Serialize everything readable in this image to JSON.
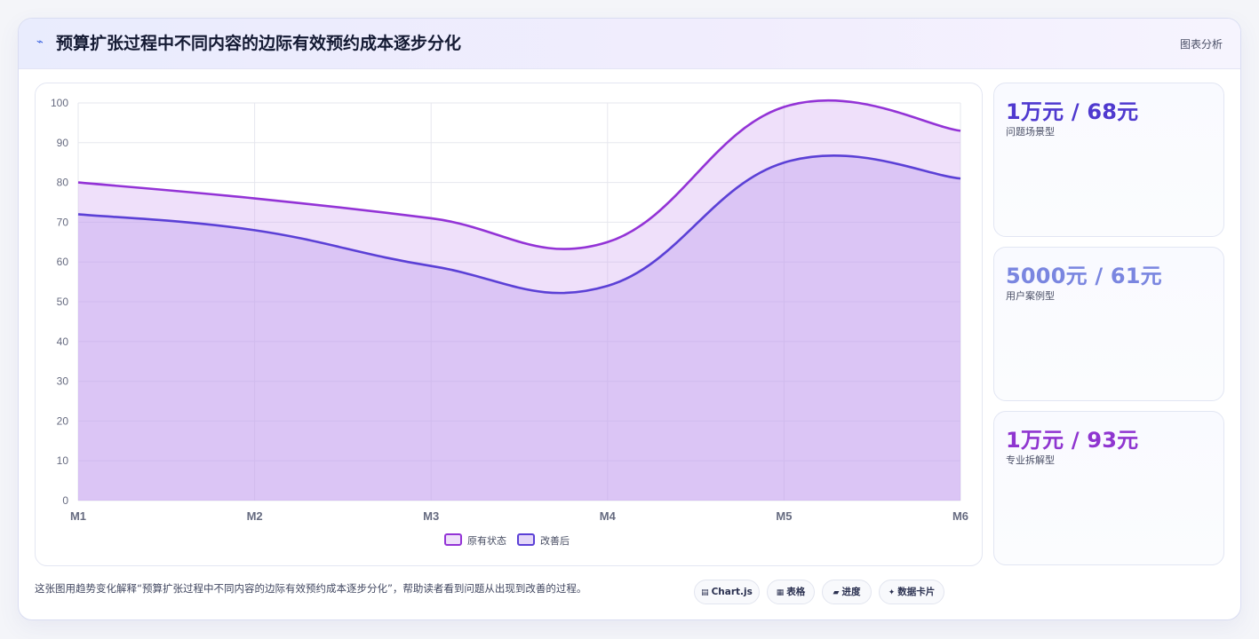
{
  "header": {
    "icon": "trend-line-icon",
    "title": "预算扩张过程中不同内容的边际有效预约成本逐步分化",
    "link": "图表分析"
  },
  "colors": {
    "series_original": "#9333d6",
    "series_improved": "#5b40d6",
    "stat1": "#4f39cf",
    "stat2": "#7a86e0",
    "stat3": "#8f35d0"
  },
  "chart_data": {
    "type": "area",
    "categories": [
      "M1",
      "M2",
      "M3",
      "M4",
      "M5",
      "M6"
    ],
    "ylim": [
      0,
      100
    ],
    "yticks": [
      "0",
      "10",
      "20",
      "30",
      "40",
      "50",
      "60",
      "70",
      "80",
      "90",
      "100"
    ],
    "grid": true,
    "legend_position": "bottom",
    "series": [
      {
        "name": "原有状态",
        "values": [
          80,
          76,
          71,
          65,
          99,
          93
        ],
        "color": "#9333d6",
        "fill": "rgba(205,160,240,0.32)"
      },
      {
        "name": "改善后",
        "values": [
          72,
          68,
          59,
          54,
          85,
          81
        ],
        "color": "#5b40d6",
        "fill": "rgba(190,160,238,0.42)"
      }
    ]
  },
  "stats": [
    {
      "value": "1万元 / 68元",
      "label": "问题场景型"
    },
    {
      "value": "5000元 / 61元",
      "label": "用户案例型"
    },
    {
      "value": "1万元 / 93元",
      "label": "专业拆解型"
    }
  ],
  "footer": {
    "description": "这张图用趋势变化解释“预算扩张过程中不同内容的边际有效预约成本逐步分化”，帮助读者看到问题从出现到改善的过程。",
    "pills": [
      {
        "icon": "chart-icon",
        "label": "Chart.js"
      },
      {
        "icon": "table-icon",
        "label": "表格"
      },
      {
        "icon": "progress-icon",
        "label": "进度"
      },
      {
        "icon": "sparkle-icon",
        "label": "数据卡片"
      }
    ]
  }
}
